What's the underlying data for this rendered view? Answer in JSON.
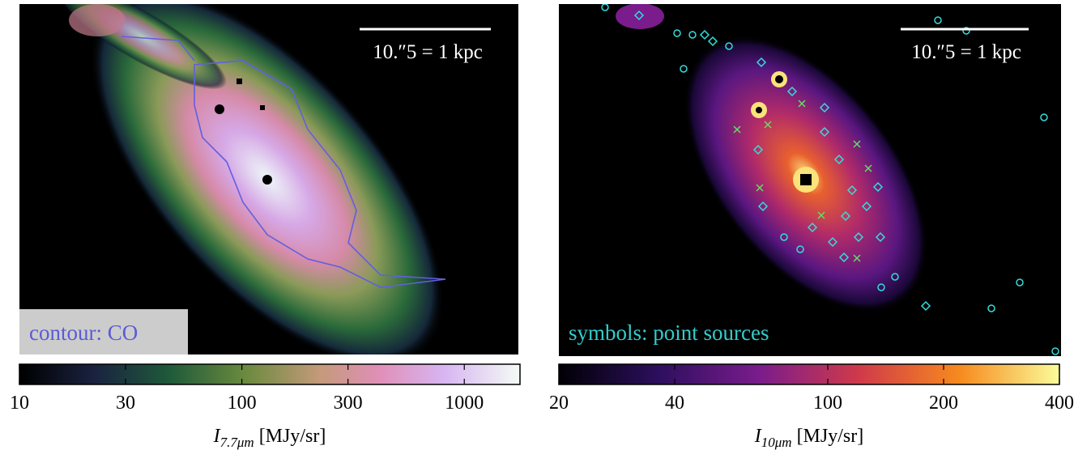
{
  "panels": [
    {
      "scale_label": "10.″5 = 1 kpc",
      "annotation": "contour: CO",
      "colorbar": {
        "log": true,
        "clim": [
          10,
          1780
        ],
        "ticks": [
          10,
          30,
          100,
          300,
          1000
        ],
        "label_symbol": "I",
        "label_subscript": "7.7μm",
        "label_unit": "[MJy/sr]"
      }
    },
    {
      "scale_label": "10.″5 = 1 kpc",
      "annotation": "symbols: point sources",
      "colorbar": {
        "log": true,
        "clim": [
          20,
          400
        ],
        "ticks": [
          20,
          40,
          100,
          200,
          400
        ],
        "label_symbol": "I",
        "label_subscript": "10μm",
        "label_unit": "[MJy/sr]"
      }
    }
  ]
}
